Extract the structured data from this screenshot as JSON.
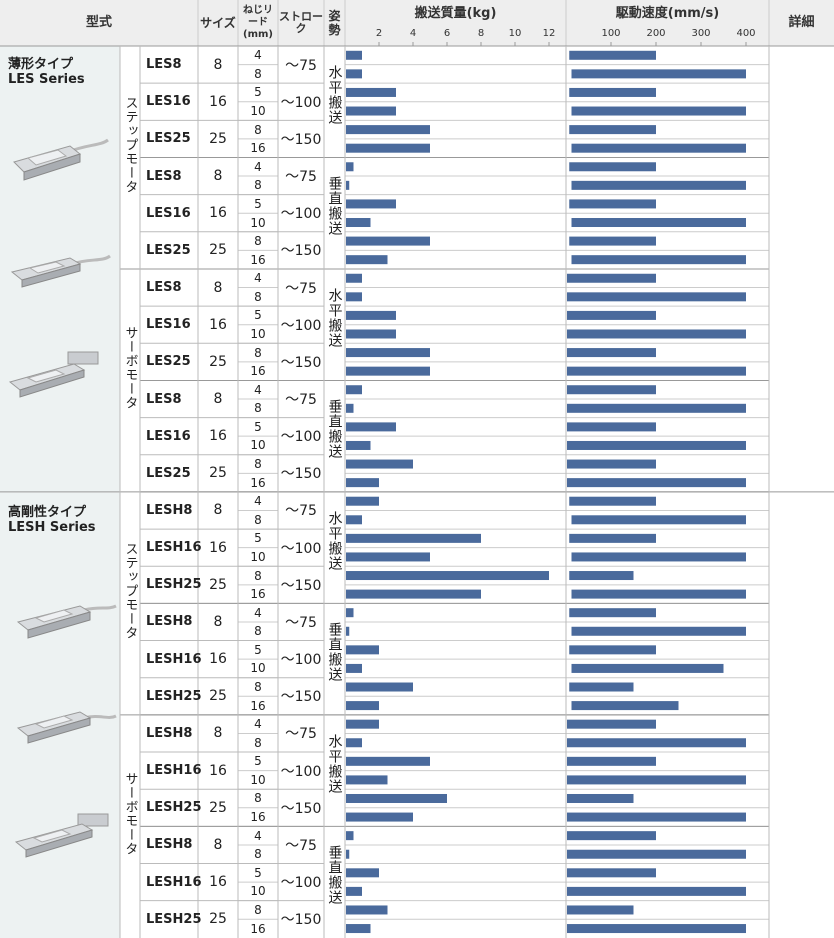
{
  "header": {
    "model": "型式",
    "size": "サイズ",
    "lead": "ねじリード(mm)",
    "stroke": "ストローク",
    "posture": "姿勢",
    "payload": "搬送質量(kg)",
    "speed": "駆動速度(mm/s)",
    "detail": "詳細"
  },
  "colors": {
    "bar": "#4a6a9c",
    "header_bg": "#eeeeee",
    "series_bg": "#edf2f2",
    "grid": "#cccccc"
  },
  "series": [
    {
      "name": "薄形タイプ",
      "sub": "LES Series"
    },
    {
      "name": "高剛性タイプ",
      "sub": "LESH Series"
    }
  ],
  "motor_labels": {
    "step": "ステップモータ",
    "servo": "サーボモータ"
  },
  "posture_labels": {
    "horizontal": "水平搬送",
    "vertical": "垂直搬送"
  },
  "chart_data": [
    {
      "type": "bar",
      "title": "搬送質量(kg)",
      "xticks": [
        2,
        4,
        6,
        8,
        10,
        12
      ],
      "xlim": [
        0,
        13
      ],
      "values": [
        1,
        1,
        3,
        3,
        5,
        5,
        0.5,
        0.25,
        3,
        1.5,
        5,
        2.5,
        1,
        1,
        3,
        3,
        5,
        5,
        1,
        0.5,
        3,
        1.5,
        4,
        2,
        2,
        1,
        8,
        5,
        12,
        8,
        0.5,
        0.25,
        2,
        1,
        4,
        2,
        2,
        1,
        5,
        2.5,
        6,
        4,
        0.5,
        0.25,
        2,
        1,
        2.5,
        1.5
      ]
    },
    {
      "type": "bar",
      "title": "駆動速度(mm/s)",
      "xticks": [
        100,
        200,
        300,
        400
      ],
      "xlim": [
        0,
        440
      ],
      "start_min": [
        10,
        20,
        10,
        20,
        10,
        20,
        10,
        20,
        10,
        20,
        10,
        20,
        0,
        0,
        0,
        0,
        0,
        0,
        0,
        0,
        0,
        0,
        0,
        0,
        10,
        20,
        10,
        20,
        10,
        20,
        10,
        20,
        10,
        20,
        10,
        20,
        0,
        0,
        0,
        0,
        0,
        0,
        0,
        0,
        0,
        0,
        0,
        0
      ],
      "values": [
        200,
        400,
        200,
        400,
        200,
        400,
        200,
        400,
        200,
        400,
        200,
        400,
        200,
        400,
        200,
        400,
        200,
        400,
        200,
        400,
        200,
        400,
        200,
        400,
        200,
        400,
        200,
        400,
        150,
        400,
        200,
        400,
        200,
        350,
        150,
        250,
        200,
        400,
        200,
        400,
        150,
        400,
        200,
        400,
        200,
        400,
        150,
        400
      ]
    }
  ],
  "groups": [
    {
      "model": "LES8",
      "size": "8",
      "leads": [
        "4",
        "8"
      ],
      "stroke": "〜75"
    },
    {
      "model": "LES16",
      "size": "16",
      "leads": [
        "5",
        "10"
      ],
      "stroke": "〜100"
    },
    {
      "model": "LES25",
      "size": "25",
      "leads": [
        "8",
        "16"
      ],
      "stroke": "〜150"
    },
    {
      "model": "LES8",
      "size": "8",
      "leads": [
        "4",
        "8"
      ],
      "stroke": "〜75"
    },
    {
      "model": "LES16",
      "size": "16",
      "leads": [
        "5",
        "10"
      ],
      "stroke": "〜100"
    },
    {
      "model": "LES25",
      "size": "25",
      "leads": [
        "8",
        "16"
      ],
      "stroke": "〜150"
    },
    {
      "model": "LES8",
      "size": "8",
      "leads": [
        "4",
        "8"
      ],
      "stroke": "〜75"
    },
    {
      "model": "LES16",
      "size": "16",
      "leads": [
        "5",
        "10"
      ],
      "stroke": "〜100"
    },
    {
      "model": "LES25",
      "size": "25",
      "leads": [
        "8",
        "16"
      ],
      "stroke": "〜150"
    },
    {
      "model": "LES8",
      "size": "8",
      "leads": [
        "4",
        "8"
      ],
      "stroke": "〜75"
    },
    {
      "model": "LES16",
      "size": "16",
      "leads": [
        "5",
        "10"
      ],
      "stroke": "〜100"
    },
    {
      "model": "LES25",
      "size": "25",
      "leads": [
        "8",
        "16"
      ],
      "stroke": "〜150"
    },
    {
      "model": "LESH8",
      "size": "8",
      "leads": [
        "4",
        "8"
      ],
      "stroke": "〜75"
    },
    {
      "model": "LESH16",
      "size": "16",
      "leads": [
        "5",
        "10"
      ],
      "stroke": "〜100"
    },
    {
      "model": "LESH25",
      "size": "25",
      "leads": [
        "8",
        "16"
      ],
      "stroke": "〜150"
    },
    {
      "model": "LESH8",
      "size": "8",
      "leads": [
        "4",
        "8"
      ],
      "stroke": "〜75"
    },
    {
      "model": "LESH16",
      "size": "16",
      "leads": [
        "5",
        "10"
      ],
      "stroke": "〜100"
    },
    {
      "model": "LESH25",
      "size": "25",
      "leads": [
        "8",
        "16"
      ],
      "stroke": "〜150"
    },
    {
      "model": "LESH8",
      "size": "8",
      "leads": [
        "4",
        "8"
      ],
      "stroke": "〜75"
    },
    {
      "model": "LESH16",
      "size": "16",
      "leads": [
        "5",
        "10"
      ],
      "stroke": "〜100"
    },
    {
      "model": "LESH25",
      "size": "25",
      "leads": [
        "8",
        "16"
      ],
      "stroke": "〜150"
    },
    {
      "model": "LESH8",
      "size": "8",
      "leads": [
        "4",
        "8"
      ],
      "stroke": "〜75"
    },
    {
      "model": "LESH16",
      "size": "16",
      "leads": [
        "5",
        "10"
      ],
      "stroke": "〜100"
    },
    {
      "model": "LESH25",
      "size": "25",
      "leads": [
        "8",
        "16"
      ],
      "stroke": "〜150"
    }
  ]
}
